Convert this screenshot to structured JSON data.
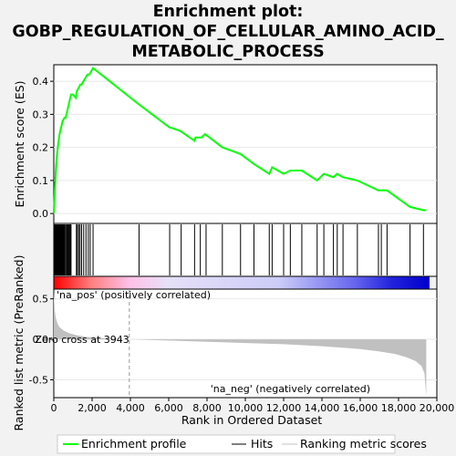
{
  "title_lines": [
    "Enrichment plot:",
    "GOBP_REGULATION_OF_CELLULAR_AMINO_ACID_",
    "METABOLIC_PROCESS"
  ],
  "chart_data": {
    "type": "line",
    "es_panel": {
      "ylabel": "Enrichment score (ES)",
      "ylim": [
        -0.03,
        0.45
      ],
      "yticks": [
        0.0,
        0.1,
        0.2,
        0.3,
        0.4
      ],
      "ytick_labels": [
        "0.0",
        "0.1",
        "0.2",
        "0.3",
        "0.4"
      ],
      "series": [
        {
          "name": "Enrichment profile",
          "color": "#00ff00",
          "x": [
            0,
            60,
            120,
            170,
            230,
            300,
            380,
            460,
            560,
            620,
            700,
            780,
            820,
            900,
            1000,
            1150,
            1200,
            1300,
            1380,
            1450,
            1550,
            1650,
            1750,
            1850,
            1950,
            2050,
            4450,
            6050,
            6100,
            6600,
            7350,
            7400,
            7700,
            7900,
            8800,
            9750,
            10450,
            11250,
            11400,
            12000,
            12350,
            12950,
            13750,
            14100,
            14600,
            14800,
            15100,
            15850,
            16950,
            17100,
            17400,
            18600,
            19300,
            19450
          ],
          "y": [
            0.0,
            0.08,
            0.14,
            0.18,
            0.21,
            0.24,
            0.26,
            0.28,
            0.29,
            0.29,
            0.31,
            0.33,
            0.34,
            0.36,
            0.36,
            0.35,
            0.37,
            0.38,
            0.39,
            0.39,
            0.4,
            0.41,
            0.42,
            0.42,
            0.43,
            0.44,
            0.33,
            0.26,
            0.26,
            0.25,
            0.22,
            0.23,
            0.23,
            0.24,
            0.2,
            0.18,
            0.15,
            0.12,
            0.14,
            0.12,
            0.13,
            0.13,
            0.1,
            0.12,
            0.11,
            0.12,
            0.11,
            0.1,
            0.07,
            0.07,
            0.07,
            0.02,
            0.01,
            0.01
          ]
        }
      ]
    },
    "hits_x": [
      10,
      30,
      55,
      80,
      110,
      140,
      170,
      200,
      230,
      260,
      290,
      320,
      350,
      380,
      410,
      440,
      470,
      500,
      530,
      560,
      610,
      660,
      700,
      740,
      780,
      820,
      860,
      900,
      1180,
      1230,
      1300,
      1370,
      1450,
      1560,
      1680,
      1800,
      1900,
      2050,
      4450,
      6050,
      6650,
      7350,
      7650,
      7950,
      8800,
      9750,
      10450,
      11250,
      11400,
      12000,
      12350,
      12950,
      13750,
      14100,
      14600,
      14800,
      15100,
      15850,
      16950,
      17100,
      17400,
      18600,
      19300
    ],
    "rank_panel": {
      "ylabel": "Ranked list metric (PreRanked)",
      "xlabel": "Rank in Ordered Dataset",
      "ylim": [
        -0.72,
        0.62
      ],
      "yticks": [
        0.5,
        0.0,
        -0.5
      ],
      "ytick_labels": [
        "0.5",
        "0.0",
        "-0.5"
      ],
      "xlim": [
        0,
        20000
      ],
      "xticks": [
        0,
        2000,
        4000,
        6000,
        8000,
        10000,
        12000,
        14000,
        16000,
        18000,
        20000
      ],
      "xtick_labels": [
        "0",
        "2,000",
        "4,000",
        "6,000",
        "8,000",
        "10,000",
        "12,000",
        "14,000",
        "16,000",
        "18,000",
        "20,000"
      ],
      "zero_cross": 3943,
      "zero_cross_label": "Zero cross at 3943",
      "pos_label": "'na_pos' (positively correlated)",
      "neg_label": "'na_neg' (negatively correlated)",
      "metric_x": [
        0,
        50,
        100,
        200,
        300,
        500,
        800,
        1200,
        1700,
        2500,
        3943,
        6000,
        8000,
        10000,
        12000,
        14000,
        16000,
        17000,
        17800,
        18400,
        18900,
        19200,
        19350,
        19450
      ],
      "metric_y": [
        0.6,
        0.36,
        0.27,
        0.19,
        0.15,
        0.11,
        0.075,
        0.05,
        0.03,
        0.015,
        0.0,
        -0.015,
        -0.03,
        -0.045,
        -0.06,
        -0.085,
        -0.12,
        -0.15,
        -0.18,
        -0.22,
        -0.27,
        -0.33,
        -0.42,
        -0.7
      ]
    },
    "legend": {
      "placement": "bottom",
      "items": [
        "Enrichment profile",
        "Hits",
        "Ranking metric scores"
      ]
    },
    "colors": {
      "es_line": "#00ff00",
      "metric_fill": "#c0c0c0",
      "pos_label": "#ff0000",
      "neg_label": "#0000ff"
    }
  }
}
